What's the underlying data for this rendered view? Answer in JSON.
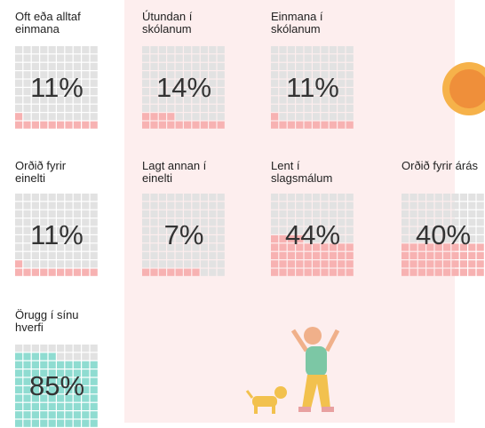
{
  "chart_data": {
    "type": "waffle",
    "categories": [
      "Oft eða alltaf einmana",
      "Útundan í skólanum",
      "Einmana í skólanum",
      "Orðið fyrir einelti",
      "Lagt annan í einelti",
      "Lent í slagsmálum",
      "Orðið fyrir árás",
      "Örugg í sínu hverfi"
    ],
    "values": [
      11,
      14,
      11,
      11,
      7,
      44,
      40,
      85
    ],
    "value_labels": [
      "11%",
      "14%",
      "11%",
      "11%",
      "7%",
      "44%",
      "40%",
      "85%"
    ],
    "colors": [
      "#f7b2b2",
      "#f7b2b2",
      "#f7b2b2",
      "#f7b2b2",
      "#f7b2b2",
      "#f7b2b2",
      "#f7b2b2",
      "#8fdcd1"
    ]
  }
}
